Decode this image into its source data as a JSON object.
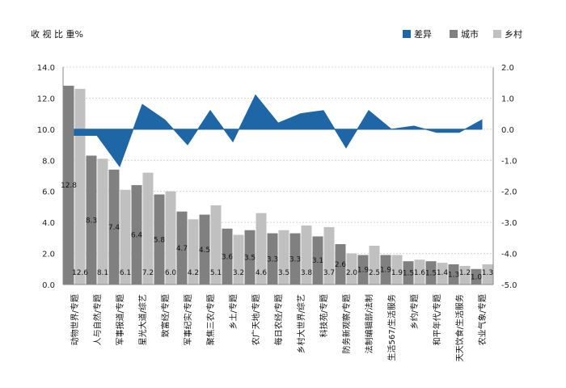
{
  "chart_data": {
    "type": "bar",
    "title": "收 视 比 重%",
    "colors": {
      "city": "#808080",
      "rural": "#c0c0c0",
      "diff": "#1f66a6",
      "grid": "#d4d4d4"
    },
    "legend": {
      "placement": "top-right",
      "items": [
        "差异",
        "城市",
        "乡村"
      ]
    },
    "categories": [
      "动物世界/专题",
      "人与自然/专题",
      "军事报道/专题",
      "星光大道/综艺",
      "致富经/专题",
      "军事纪实/专题",
      "聚焦三农/专题",
      "乡土/专题",
      "农广天地/专题",
      "每日农经/专题",
      "乡村大世界/综艺",
      "科技苑/专题",
      "防务新观察/专题",
      "法制编辑部/法制",
      "生活567/生活服务",
      "乡约/专题",
      "和平年代/专题",
      "天天饮食/生活服务",
      "农业气象/专题"
    ],
    "series": [
      {
        "name": "城市",
        "values": [
          12.8,
          8.3,
          7.4,
          6.4,
          5.8,
          4.7,
          4.5,
          3.6,
          3.5,
          3.3,
          3.3,
          3.1,
          2.6,
          1.9,
          1.9,
          1.5,
          1.5,
          1.3,
          1.0
        ]
      },
      {
        "name": "乡村",
        "values": [
          12.6,
          8.1,
          6.1,
          7.2,
          6.0,
          4.2,
          5.1,
          3.2,
          4.6,
          3.5,
          3.8,
          3.7,
          2.0,
          2.5,
          1.9,
          1.6,
          1.4,
          1.2,
          1.3
        ]
      },
      {
        "name": "差异",
        "type": "area",
        "axis": "right",
        "values": [
          -0.2,
          -0.2,
          -1.2,
          0.8,
          0.3,
          -0.5,
          0.6,
          -0.4,
          1.1,
          0.2,
          0.5,
          0.6,
          -0.6,
          0.6,
          0.0,
          0.1,
          -0.1,
          -0.1,
          0.3
        ]
      }
    ],
    "y_left": {
      "ylim": [
        0,
        14
      ],
      "ticks": [
        "0.0",
        "2.0",
        "4.0",
        "6.0",
        "8.0",
        "10.0",
        "12.0",
        "14.0"
      ]
    },
    "y_right": {
      "ylim": [
        -5,
        2
      ],
      "ticks": [
        "-5.0",
        "-4.0",
        "-3.0",
        "-2.0",
        "-1.0",
        "0.0",
        "1.0",
        "2.0"
      ]
    },
    "grid": true
  }
}
